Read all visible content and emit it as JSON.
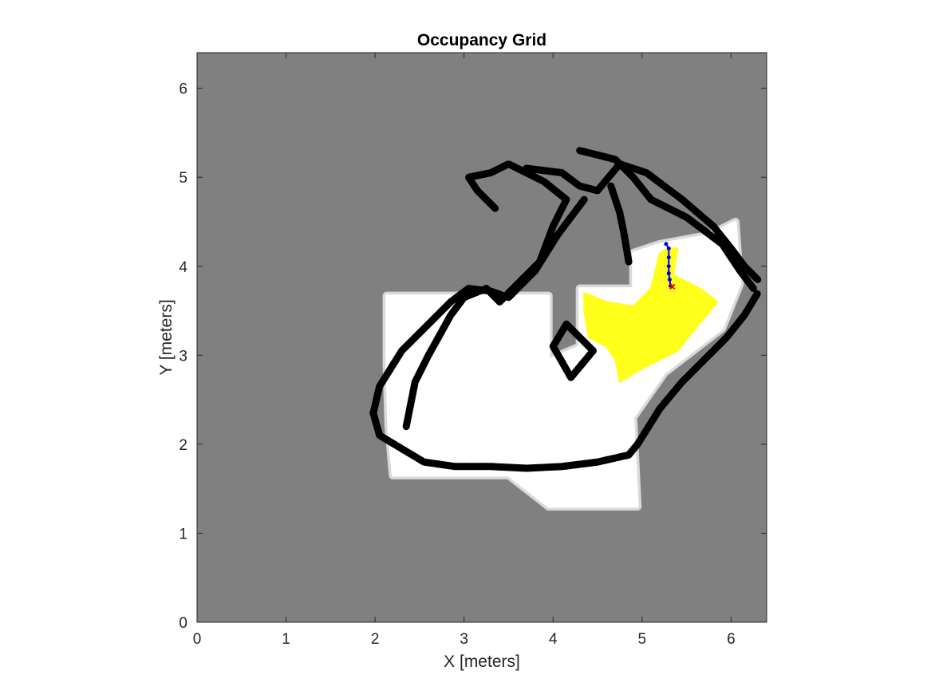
{
  "chart_data": {
    "type": "heatmap",
    "title": "Occupancy Grid",
    "xlabel": "X [meters]",
    "ylabel": "Y [meters]",
    "xlim": [
      0,
      6.4
    ],
    "ylim": [
      0,
      6.4
    ],
    "x_ticks": [
      "0",
      "1",
      "2",
      "3",
      "4",
      "5",
      "6"
    ],
    "y_ticks": [
      "0",
      "1",
      "2",
      "3",
      "4",
      "5",
      "6"
    ],
    "grid": false,
    "colors": {
      "unknown": "#808080",
      "free": "#ffffff",
      "occupied": "#000000",
      "frontier": "#ffff1a",
      "path": "#0000e6",
      "goal": "#ff0000"
    },
    "free_regions": [
      [
        [
          2.13,
          3.67
        ],
        [
          3.95,
          3.67
        ],
        [
          3.95,
          2.95
        ],
        [
          4.3,
          3.1
        ],
        [
          4.3,
          3.75
        ],
        [
          4.9,
          3.75
        ],
        [
          4.9,
          4.15
        ],
        [
          5.2,
          4.25
        ],
        [
          5.75,
          4.35
        ],
        [
          6.05,
          4.5
        ],
        [
          6.1,
          3.8
        ],
        [
          5.9,
          3.3
        ],
        [
          5.25,
          2.8
        ],
        [
          4.9,
          2.3
        ],
        [
          4.95,
          1.3
        ],
        [
          3.95,
          1.3
        ],
        [
          3.5,
          1.65
        ],
        [
          2.2,
          1.65
        ],
        [
          2.15,
          2.2
        ],
        [
          2.13,
          2.9
        ]
      ]
    ],
    "walls": [
      [
        [
          2.35,
          2.2
        ],
        [
          2.45,
          2.7
        ],
        [
          2.6,
          3.0
        ],
        [
          2.85,
          3.45
        ],
        [
          3.0,
          3.65
        ],
        [
          3.25,
          3.75
        ],
        [
          3.4,
          3.6
        ],
        [
          3.85,
          4.05
        ],
        [
          4.0,
          4.45
        ],
        [
          4.15,
          4.75
        ],
        [
          3.9,
          4.95
        ],
        [
          3.5,
          5.15
        ],
        [
          3.3,
          5.05
        ],
        [
          3.05,
          5.0
        ],
        [
          3.15,
          4.85
        ],
        [
          3.35,
          4.65
        ]
      ],
      [
        [
          3.7,
          5.1
        ],
        [
          4.1,
          5.05
        ],
        [
          4.3,
          4.9
        ],
        [
          4.5,
          4.85
        ],
        [
          4.75,
          5.15
        ],
        [
          5.05,
          5.05
        ],
        [
          5.45,
          4.75
        ],
        [
          5.8,
          4.45
        ],
        [
          6.0,
          4.2
        ],
        [
          6.15,
          4.0
        ],
        [
          6.3,
          3.85
        ]
      ],
      [
        [
          4.3,
          5.3
        ],
        [
          4.7,
          5.2
        ],
        [
          4.9,
          5.0
        ],
        [
          5.1,
          4.75
        ],
        [
          5.5,
          4.55
        ],
        [
          5.9,
          4.25
        ],
        [
          6.1,
          3.95
        ],
        [
          6.25,
          3.75
        ]
      ],
      [
        [
          1.98,
          2.35
        ],
        [
          2.05,
          2.65
        ],
        [
          2.3,
          3.05
        ],
        [
          2.6,
          3.35
        ],
        [
          2.85,
          3.6
        ],
        [
          3.05,
          3.75
        ],
        [
          3.3,
          3.72
        ],
        [
          3.5,
          3.65
        ],
        [
          3.8,
          3.95
        ],
        [
          4.05,
          4.35
        ],
        [
          4.35,
          4.75
        ]
      ],
      [
        [
          1.98,
          2.35
        ],
        [
          2.05,
          2.1
        ],
        [
          2.3,
          1.95
        ],
        [
          2.55,
          1.8
        ],
        [
          2.9,
          1.75
        ],
        [
          3.3,
          1.75
        ],
        [
          3.7,
          1.73
        ],
        [
          4.1,
          1.75
        ],
        [
          4.5,
          1.8
        ],
        [
          4.85,
          1.88
        ],
        [
          4.95,
          2.0
        ],
        [
          5.2,
          2.4
        ],
        [
          5.45,
          2.7
        ],
        [
          5.7,
          2.95
        ],
        [
          5.95,
          3.2
        ],
        [
          6.15,
          3.45
        ],
        [
          6.3,
          3.7
        ]
      ],
      [
        [
          4.0,
          3.1
        ],
        [
          4.15,
          3.35
        ],
        [
          4.45,
          3.05
        ],
        [
          4.2,
          2.75
        ],
        [
          4.0,
          3.1
        ]
      ],
      [
        [
          4.65,
          4.9
        ],
        [
          4.75,
          4.6
        ],
        [
          4.8,
          4.35
        ],
        [
          4.85,
          4.05
        ]
      ]
    ],
    "frontier_region": [
      [
        4.35,
        3.7
      ],
      [
        4.6,
        3.6
      ],
      [
        4.9,
        3.55
      ],
      [
        5.1,
        3.75
      ],
      [
        5.2,
        4.15
      ],
      [
        5.3,
        4.2
      ],
      [
        5.4,
        4.2
      ],
      [
        5.35,
        3.9
      ],
      [
        5.65,
        3.75
      ],
      [
        5.85,
        3.6
      ],
      [
        5.6,
        3.3
      ],
      [
        5.4,
        3.05
      ],
      [
        5.0,
        2.85
      ],
      [
        4.75,
        2.7
      ],
      [
        4.7,
        2.95
      ],
      [
        4.6,
        3.1
      ],
      [
        4.4,
        3.2
      ],
      [
        4.35,
        3.5
      ]
    ],
    "path": [
      [
        5.27,
        4.25
      ],
      [
        5.3,
        4.2
      ],
      [
        5.3,
        4.1
      ],
      [
        5.3,
        4.0
      ],
      [
        5.3,
        3.92
      ],
      [
        5.31,
        3.85
      ],
      [
        5.32,
        3.78
      ]
    ],
    "goal": [
      5.34,
      3.77
    ]
  }
}
